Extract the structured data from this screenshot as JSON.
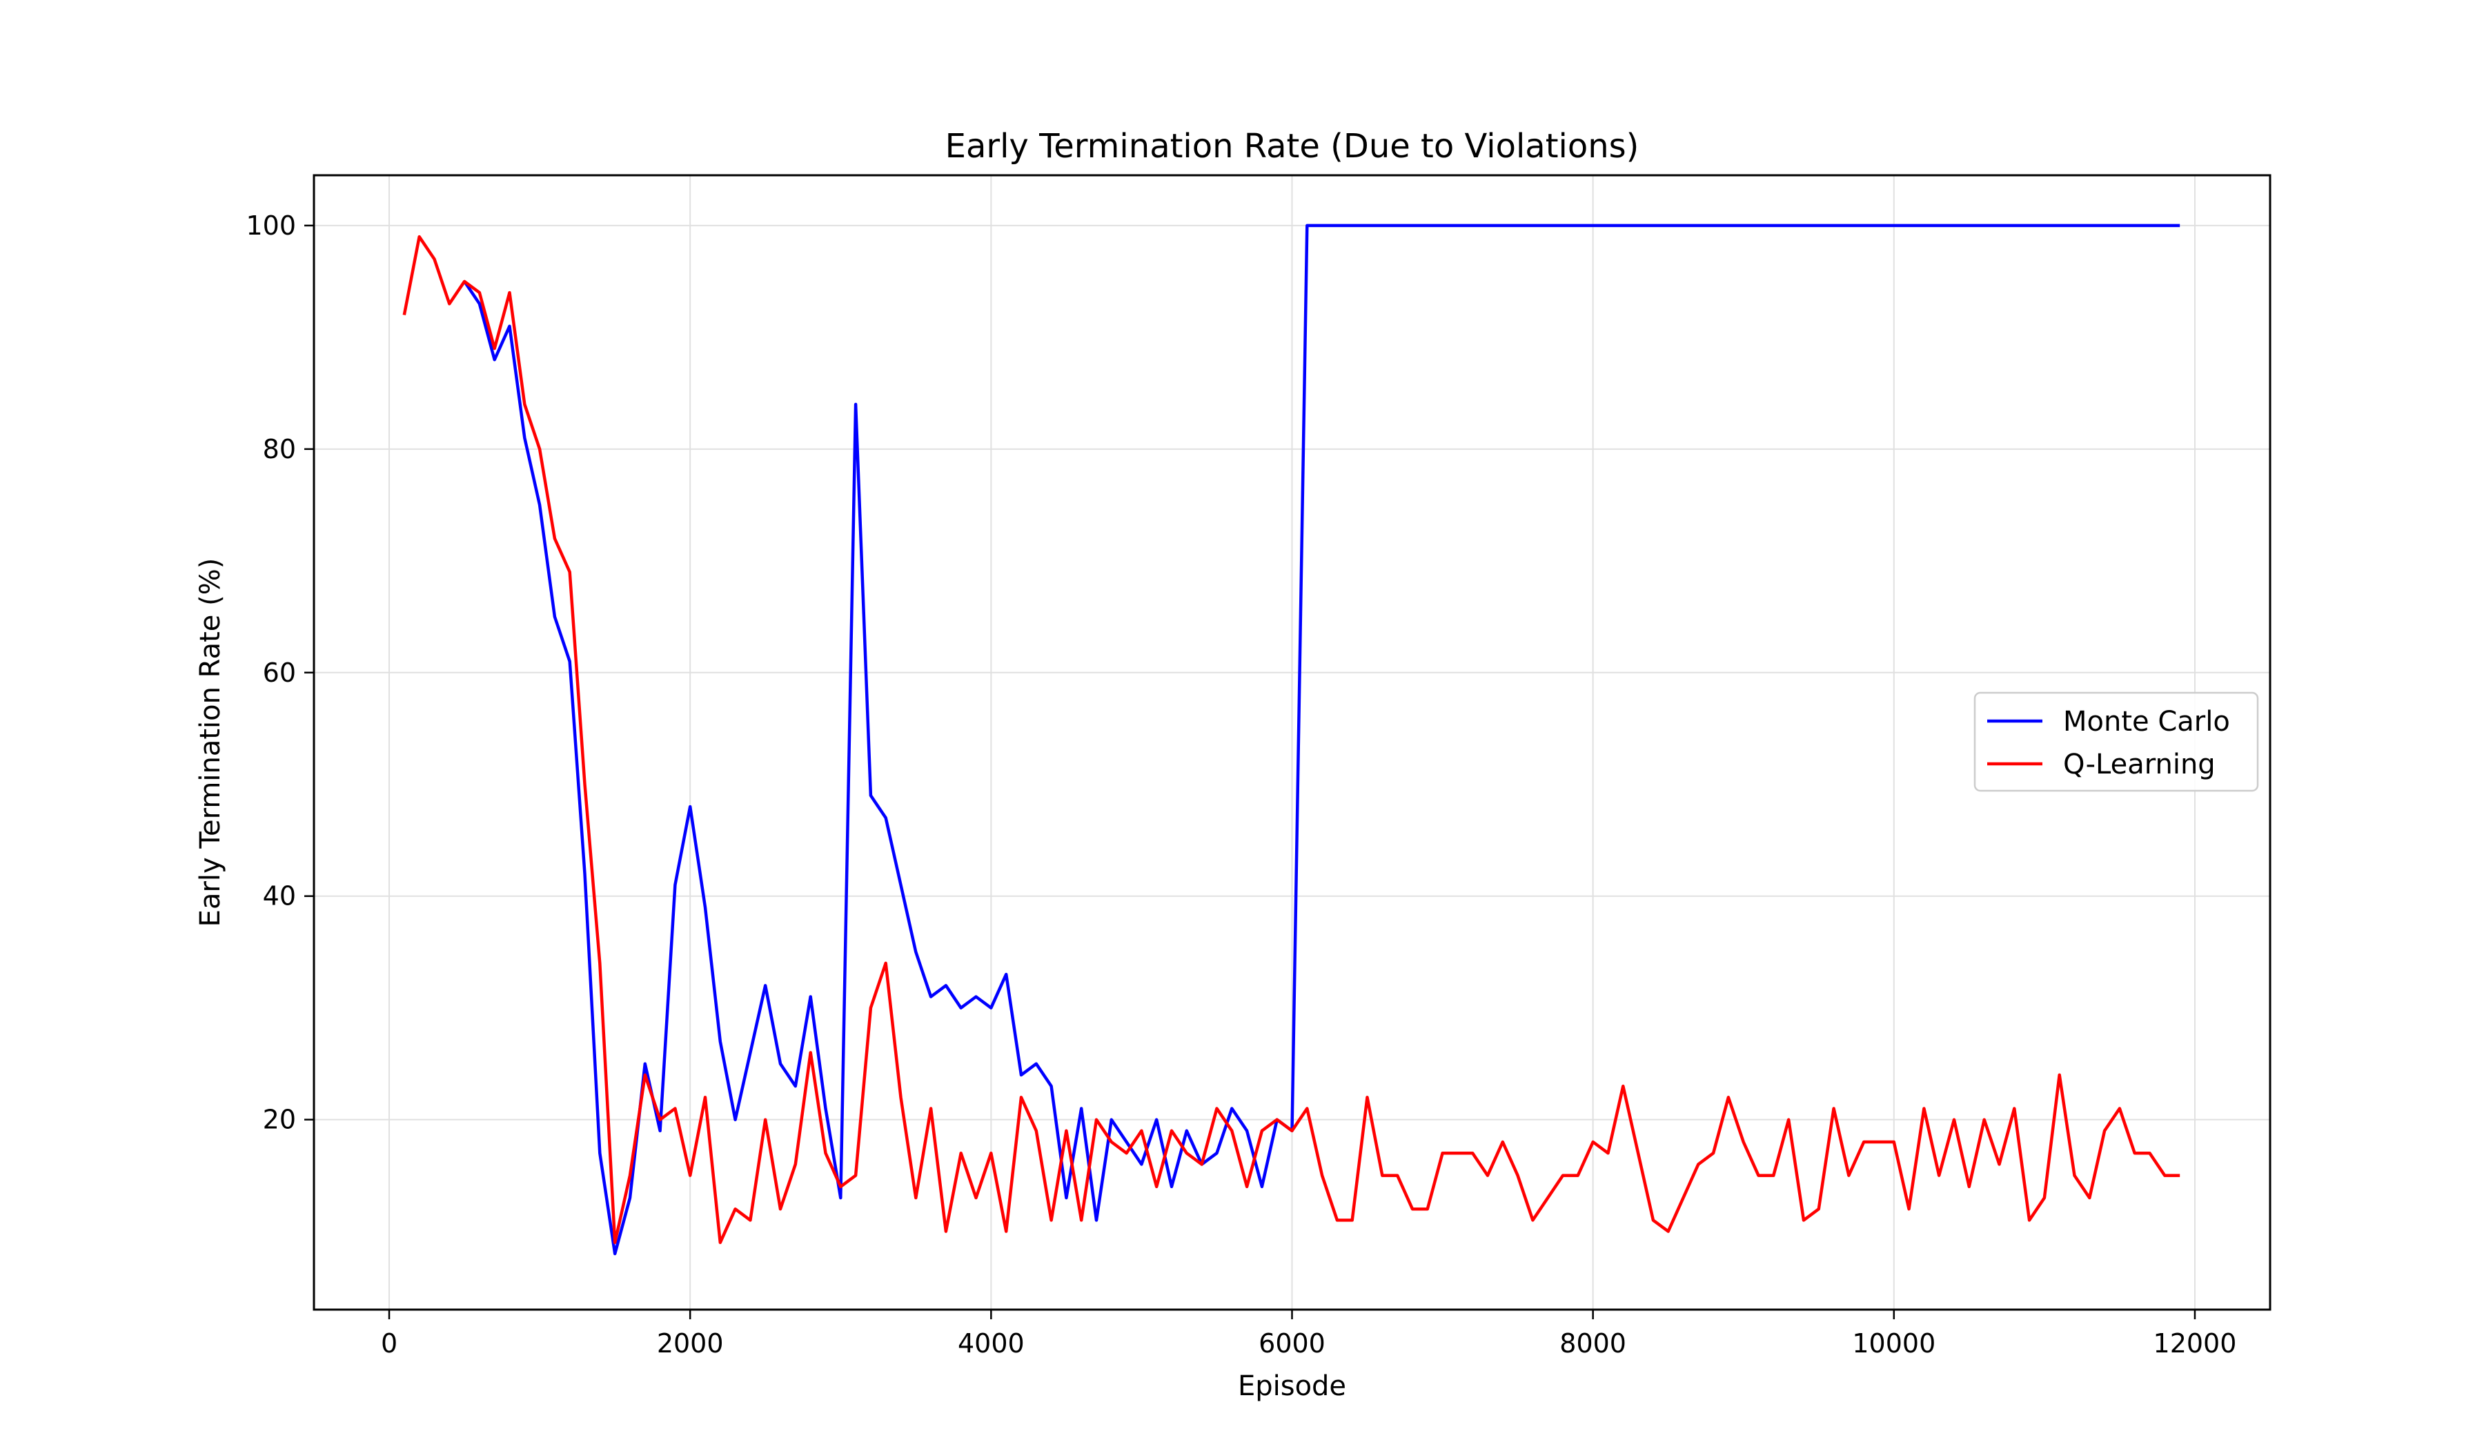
{
  "chart_data": {
    "type": "line",
    "title": "Early Termination Rate (Due to Violations)",
    "xlabel": "Episode",
    "ylabel": "Early Termination Rate (%)",
    "xlim": [
      -500,
      12500
    ],
    "ylim": [
      3,
      104.5
    ],
    "xticks": [
      0,
      2000,
      4000,
      6000,
      8000,
      10000,
      12000
    ],
    "yticks": [
      20,
      40,
      60,
      80,
      100
    ],
    "grid": true,
    "legend": "center-right",
    "series": [
      {
        "name": "Monte Carlo",
        "color": "#0000ff",
        "x": [
          500,
          600,
          700,
          800,
          900,
          1000,
          1100,
          1200,
          1300,
          1400,
          1500,
          1600,
          1700,
          1800,
          1900,
          2000,
          2100,
          2200,
          2300,
          2400,
          2500,
          2600,
          2700,
          2800,
          2900,
          3000,
          3100,
          3200,
          3300,
          3400,
          3500,
          3600,
          3700,
          3800,
          3900,
          4000,
          4100,
          4200,
          4300,
          4400,
          4500,
          4600,
          4700,
          4800,
          4900,
          5000,
          5100,
          5200,
          5300,
          5400,
          5500,
          5600,
          5700,
          5800,
          5900,
          6000,
          6100,
          6200,
          6300,
          6400,
          6500,
          6600,
          6700,
          6800,
          6900,
          7000,
          7100,
          7200,
          7300,
          7400,
          7500,
          7600,
          7700,
          7800,
          7900,
          8000,
          8100,
          8200,
          8300,
          8400,
          8500,
          8600,
          8700,
          8800,
          8900,
          9000,
          9100,
          9200,
          9300,
          9400,
          9500,
          9600,
          9700,
          9800,
          9900,
          10000,
          10100,
          10200,
          10300,
          10400,
          10500,
          10600,
          10700,
          10800,
          10900,
          11000,
          11100,
          11200,
          11300,
          11400,
          11500,
          11600,
          11700,
          11800,
          11900
        ],
        "y": [
          95,
          93,
          88,
          91,
          81,
          75,
          65,
          61,
          42,
          17,
          8,
          13,
          25,
          19,
          41,
          48,
          39,
          27,
          20,
          26,
          32,
          25,
          23,
          31,
          21,
          13,
          84,
          49,
          47,
          41,
          35,
          31,
          32,
          30,
          31,
          30,
          33,
          24,
          25,
          23,
          13,
          21,
          11,
          20,
          18,
          16,
          20,
          14,
          19,
          16,
          17,
          21,
          19,
          14,
          20,
          19,
          100,
          100,
          100,
          100,
          100,
          100,
          100,
          100,
          100,
          100,
          100,
          100,
          100,
          100,
          100,
          100,
          100,
          100,
          100,
          100,
          100,
          100,
          100,
          100,
          100,
          100,
          100,
          100,
          100,
          100,
          100,
          100,
          100,
          100,
          100,
          100,
          100,
          100,
          100,
          100,
          100,
          100,
          100,
          100,
          100,
          100,
          100,
          100,
          100,
          100,
          100,
          100,
          100,
          100,
          100,
          100,
          100,
          100,
          100
        ]
      },
      {
        "name": "Q-Learning",
        "color": "#ff0000",
        "x": [
          100,
          200,
          300,
          400,
          500,
          600,
          700,
          800,
          900,
          1000,
          1100,
          1200,
          1300,
          1400,
          1500,
          1600,
          1700,
          1800,
          1900,
          2000,
          2100,
          2200,
          2300,
          2400,
          2500,
          2600,
          2700,
          2800,
          2900,
          3000,
          3100,
          3200,
          3300,
          3400,
          3500,
          3600,
          3700,
          3800,
          3900,
          4000,
          4100,
          4200,
          4300,
          4400,
          4500,
          4600,
          4700,
          4800,
          4900,
          5000,
          5100,
          5200,
          5300,
          5400,
          5500,
          5600,
          5700,
          5800,
          5900,
          6000,
          6100,
          6200,
          6300,
          6400,
          6500,
          6600,
          6700,
          6800,
          6900,
          7000,
          7100,
          7200,
          7300,
          7400,
          7500,
          7600,
          7700,
          7800,
          7900,
          8000,
          8100,
          8200,
          8300,
          8400,
          8500,
          8600,
          8700,
          8800,
          8900,
          9000,
          9100,
          9200,
          9300,
          9400,
          9500,
          9600,
          9700,
          9800,
          9900,
          10000,
          10100,
          10200,
          10300,
          10400,
          10500,
          10600,
          10700,
          10800,
          10900,
          11000,
          11100,
          11200,
          11300,
          11400,
          11500,
          11600,
          11700,
          11800,
          11900
        ],
        "y": [
          92,
          99,
          97,
          93,
          95,
          94,
          89,
          94,
          84,
          80,
          72,
          69,
          50,
          34,
          9,
          15,
          24,
          20,
          21,
          15,
          22,
          9,
          12,
          11,
          20,
          12,
          16,
          26,
          17,
          14,
          15,
          30,
          34,
          22,
          13,
          21,
          10,
          17,
          13,
          17,
          10,
          22,
          19,
          11,
          19,
          11,
          20,
          18,
          17,
          19,
          14,
          19,
          17,
          16,
          21,
          19,
          14,
          19,
          20,
          19,
          21,
          15,
          11,
          11,
          22,
          15,
          15,
          12,
          12,
          17,
          17,
          17,
          15,
          18,
          15,
          11,
          13,
          15,
          15,
          18,
          17,
          23,
          17,
          11,
          10,
          13,
          16,
          17,
          22,
          18,
          15,
          15,
          20,
          11,
          12,
          21,
          15,
          18,
          18,
          18,
          12,
          21,
          15,
          20,
          14,
          20,
          16,
          21,
          11,
          13,
          24,
          15,
          13,
          19,
          21,
          17,
          17,
          15,
          15
        ]
      }
    ]
  }
}
